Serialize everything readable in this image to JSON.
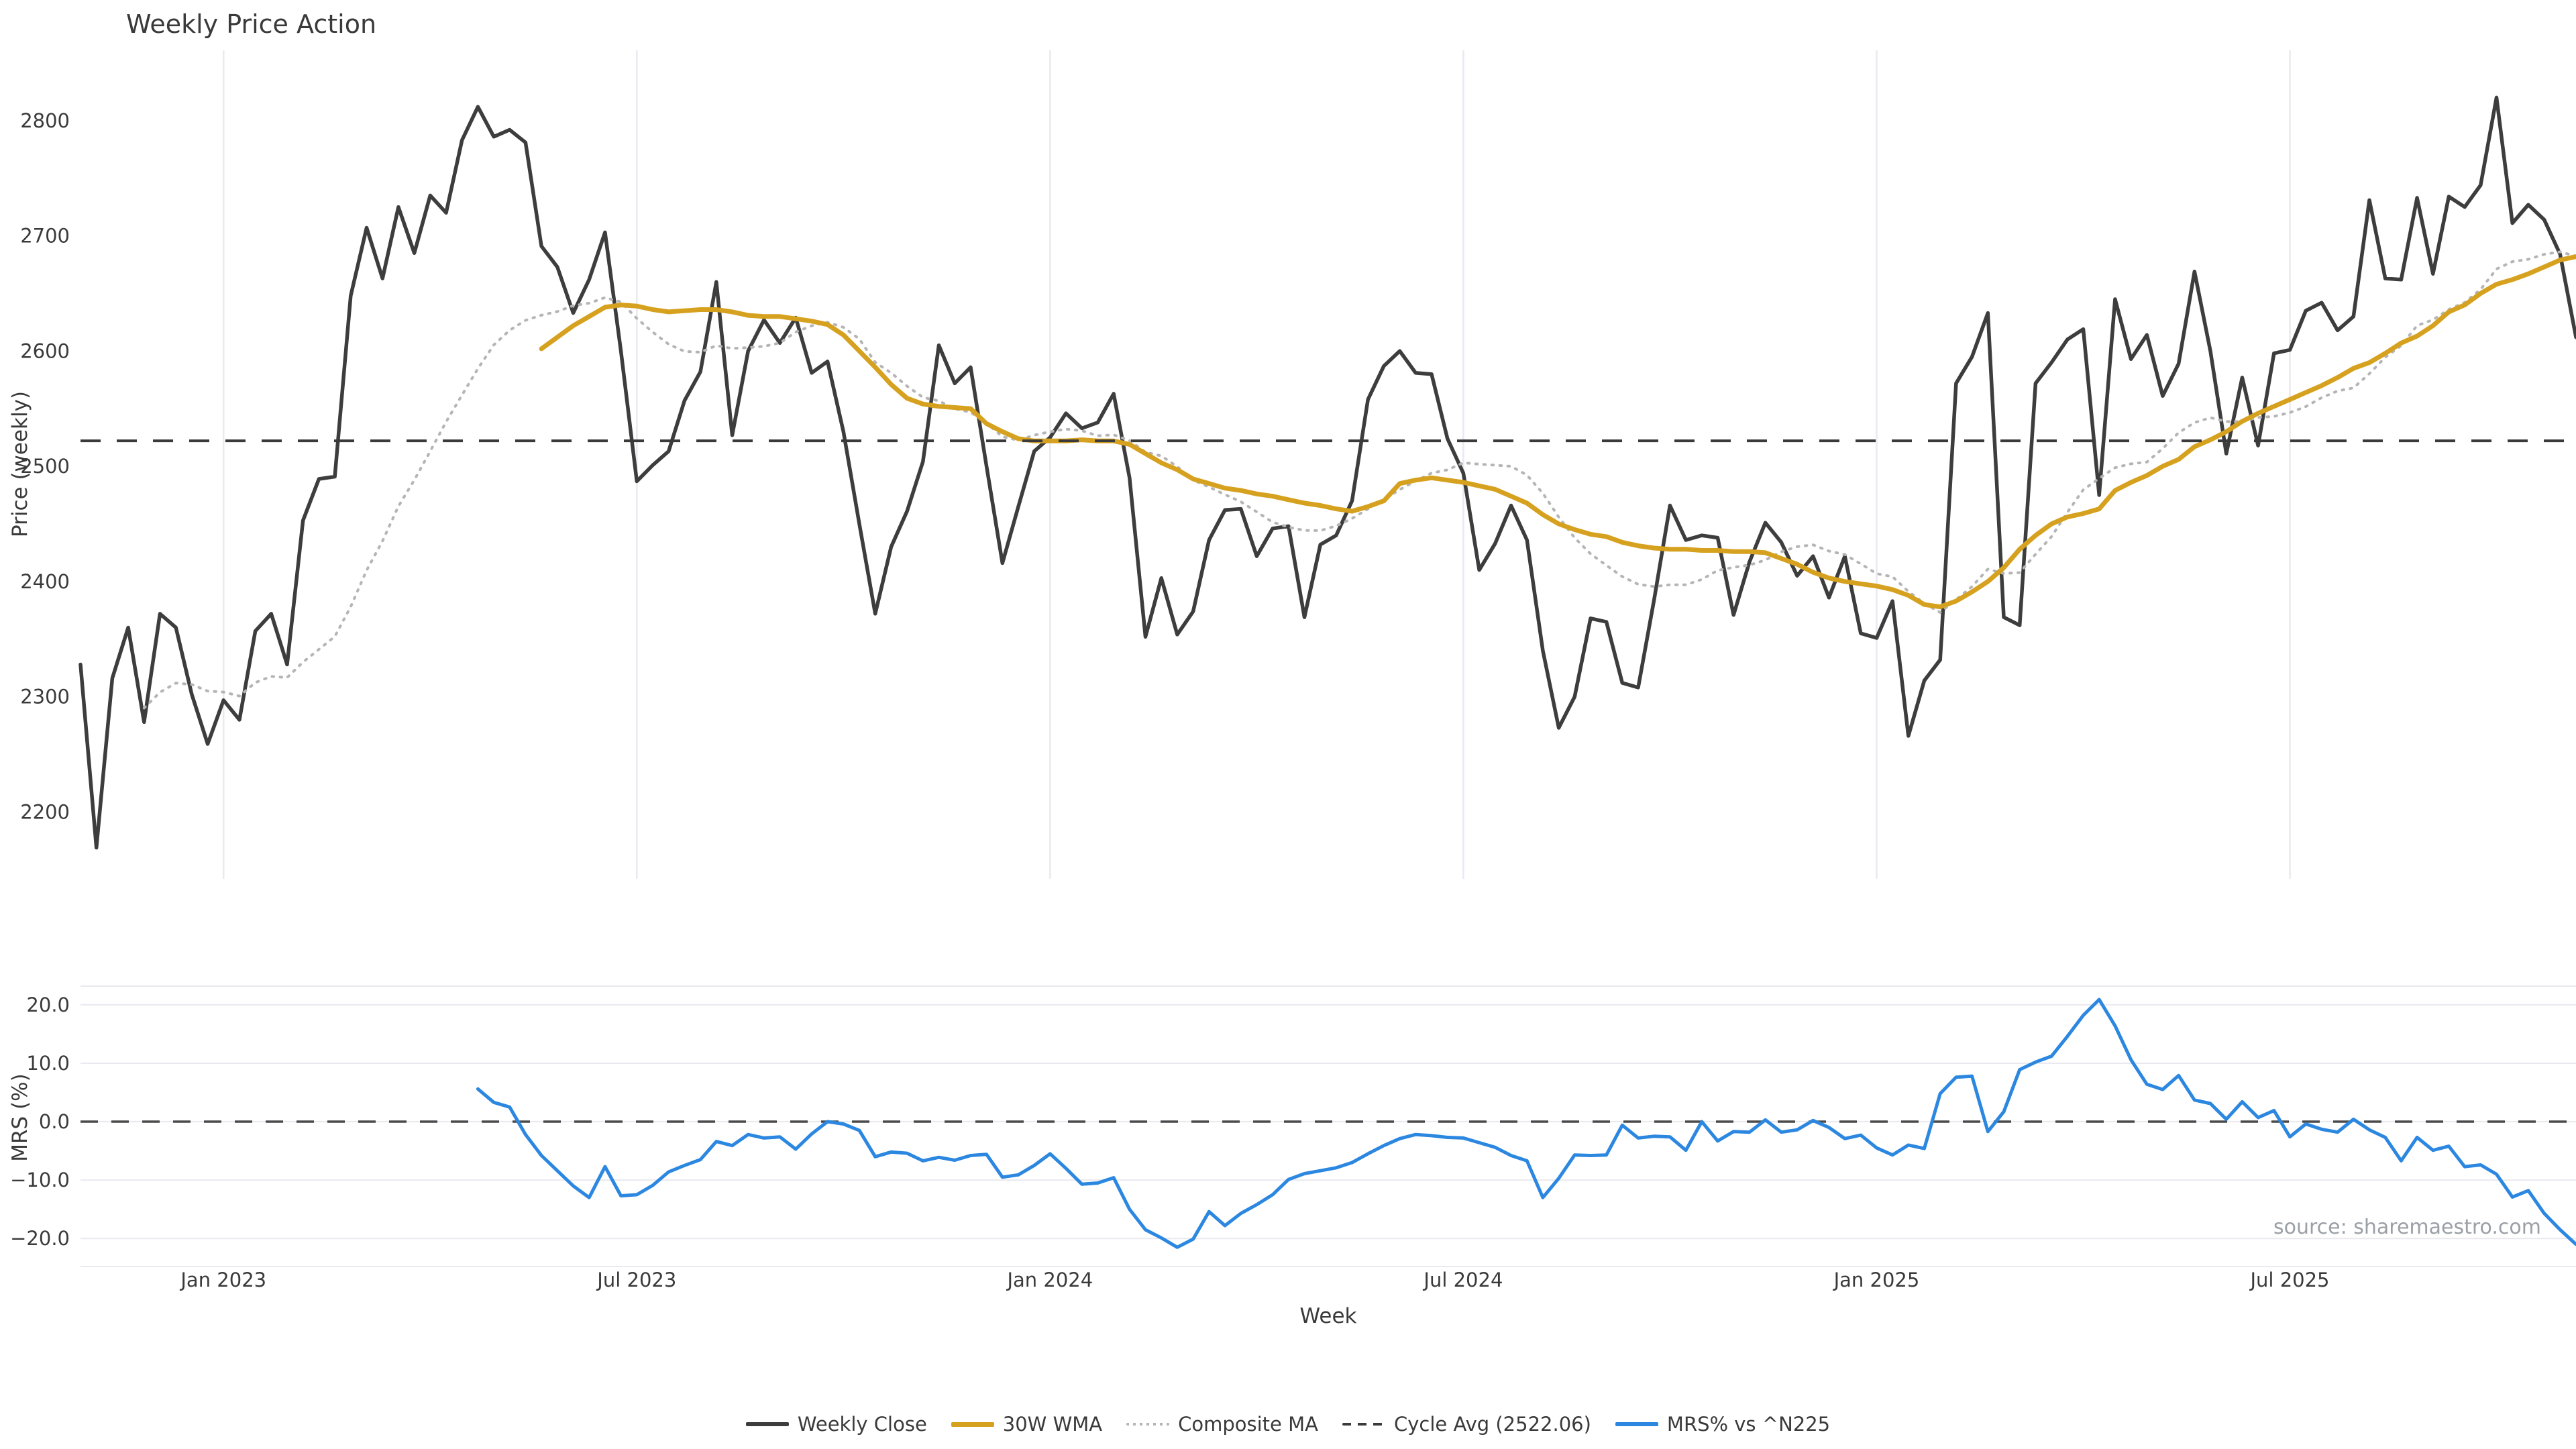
{
  "page": {
    "title": "Weekly Price Action",
    "source_credit": "source: sharemaestro.com",
    "background": "#ffffff"
  },
  "colors": {
    "weekly_close": "#3d3d3d",
    "wma": "#d6a11e",
    "composite": "#b5b5b5",
    "cycle_avg": "#3a3a3a",
    "mrs": "#2b87e0",
    "grid": "#e9e9ef",
    "zero_line": "#4a4a4a",
    "tick_text": "#3a3a3a",
    "source_text": "#9aa0a6"
  },
  "axes": {
    "x": {
      "label": "Week",
      "tick_labels": [
        "Jan 2023",
        "Jul 2023",
        "Jan 2024",
        "Jul 2024",
        "Jan 2025",
        "Jul 2025"
      ],
      "tick_indices": [
        9,
        35,
        61,
        87,
        113,
        139
      ],
      "n_points": 158
    },
    "price_y": {
      "label": "Price (weekly)",
      "tick_labels": [
        "2200",
        "2300",
        "2400",
        "2500",
        "2600",
        "2700",
        "2800"
      ],
      "tick_values": [
        2200,
        2300,
        2400,
        2500,
        2600,
        2700,
        2800
      ],
      "range": [
        2142,
        2861
      ]
    },
    "mrs_y": {
      "label": "MRS (%)",
      "tick_labels": [
        "20.0",
        "10.0",
        "0.0",
        "−10.0",
        "−20.0"
      ],
      "tick_values": [
        20,
        10,
        0,
        -10,
        -20
      ],
      "range": [
        -24.8,
        23.2
      ]
    }
  },
  "legend": {
    "items": [
      {
        "label": "Weekly Close",
        "swatch": "solid-close"
      },
      {
        "label": "30W WMA",
        "swatch": "solid-wma"
      },
      {
        "label": "Composite MA",
        "swatch": "dotted"
      },
      {
        "label": "Cycle Avg (2522.06)",
        "swatch": "dashed"
      },
      {
        "label": "MRS% vs ^N225",
        "swatch": "solid-mrs"
      }
    ]
  },
  "chart_data": [
    {
      "type": "line",
      "panel": "price",
      "title": "Weekly Price Action",
      "xlabel": "Week",
      "ylabel": "Price (weekly)",
      "x_unit": "week_index",
      "n_points": 158,
      "x_tick_indices": [
        9,
        35,
        61,
        87,
        113,
        139
      ],
      "x_tick_labels": [
        "Jan 2023",
        "Jul 2023",
        "Jan 2024",
        "Jul 2024",
        "Jan 2025",
        "Jul 2025"
      ],
      "x_range_note": "weekly data from ~Nov 2022 to ~Oct 2025",
      "ylim": [
        2142,
        2861
      ],
      "yticks": [
        2200,
        2300,
        2400,
        2500,
        2600,
        2700,
        2800
      ],
      "grid": "vertical-only",
      "legend_position": "bottom-center",
      "cycle_avg": 2522.06,
      "series": [
        {
          "name": "Weekly Close",
          "style": "solid",
          "width": 5.5,
          "start_index": 0,
          "values": [
            2328,
            2169,
            2316,
            2360,
            2278,
            2372,
            2360,
            2302,
            2259,
            2297,
            2280,
            2357,
            2372,
            2328,
            2453,
            2489,
            2491,
            2648,
            2707,
            2663,
            2725,
            2685,
            2735,
            2720,
            2783,
            2812,
            2786,
            2792,
            2781,
            2691,
            2673,
            2633,
            2662,
            2703,
            2600,
            2487,
            2501,
            2513,
            2557,
            2582,
            2660,
            2527,
            2600,
            2627,
            2607,
            2629,
            2581,
            2591,
            2530,
            2450,
            2372,
            2430,
            2461,
            2504,
            2605,
            2572,
            2586,
            2500,
            2416,
            2465,
            2513,
            2525,
            2546,
            2533,
            2538,
            2563,
            2490,
            2352,
            2403,
            2354,
            2374,
            2436,
            2462,
            2463,
            2422,
            2446,
            2448,
            2369,
            2432,
            2440,
            2470,
            2558,
            2587,
            2600,
            2581,
            2580,
            2524,
            2494,
            2410,
            2433,
            2466,
            2436,
            2340,
            2273,
            2300,
            2368,
            2365,
            2312,
            2308,
            2384,
            2466,
            2436,
            2440,
            2438,
            2371,
            2417,
            2451,
            2434,
            2405,
            2422,
            2386,
            2422,
            2355,
            2351,
            2383,
            2266,
            2314,
            2332,
            2572,
            2595,
            2633,
            2369,
            2362,
            2572,
            2590,
            2610,
            2619,
            2475,
            2645,
            2593,
            2614,
            2561,
            2589,
            2669,
            2600,
            2511,
            2577,
            2518,
            2598,
            2601,
            2635,
            2642,
            2618,
            2630,
            2731,
            2663,
            2662,
            2733,
            2667,
            2734,
            2725,
            2744,
            2820,
            2711,
            2727,
            2714,
            2684,
            2612
          ]
        },
        {
          "name": "30W WMA",
          "style": "solid",
          "width": 7,
          "start_index": 29,
          "values": [
            2602,
            2612,
            2622,
            2630,
            2638,
            2640,
            2639,
            2636,
            2634,
            2635,
            2636,
            2636,
            2634,
            2631,
            2630,
            2630,
            2628,
            2626,
            2623,
            2614,
            2600,
            2586,
            2571,
            2559,
            2554,
            2552,
            2551,
            2550,
            2537,
            2530,
            2524,
            2522,
            2522,
            2522,
            2523,
            2522,
            2522,
            2519,
            2511,
            2503,
            2497,
            2489,
            2485,
            2481,
            2479,
            2476,
            2474,
            2471,
            2468,
            2466,
            2463,
            2461,
            2465,
            2470,
            2485,
            2488,
            2490,
            2488,
            2486,
            2483,
            2480,
            2474,
            2468,
            2458,
            2450,
            2445,
            2441,
            2439,
            2434,
            2431,
            2429,
            2428,
            2428,
            2427,
            2427,
            2426,
            2426,
            2425,
            2420,
            2415,
            2408,
            2403,
            2400,
            2398,
            2396,
            2393,
            2388,
            2380,
            2378,
            2383,
            2391,
            2400,
            2412,
            2428,
            2440,
            2450,
            2456,
            2459,
            2463,
            2479,
            2486,
            2492,
            2500,
            2506,
            2517,
            2523,
            2530,
            2539,
            2546,
            2552,
            2558,
            2564,
            2570,
            2577,
            2585,
            2590,
            2598,
            2607,
            2613,
            2622,
            2634,
            2640,
            2650,
            2658,
            2662,
            2667,
            2673,
            2679,
            2682
          ]
        },
        {
          "name": "Composite MA",
          "style": "dotted",
          "width": 4,
          "start_index": 4,
          "derived_from": "Weekly Close",
          "formula": "mean(SMA10, SMA30) with clipped windows"
        },
        {
          "name": "Cycle Avg (2522.06)",
          "style": "dashed",
          "width": 4,
          "constant": 2522.06
        }
      ]
    },
    {
      "type": "line",
      "panel": "mrs",
      "ylabel": "MRS (%)",
      "x_unit": "week_index",
      "n_points": 158,
      "ylim": [
        -24.8,
        23.2
      ],
      "yticks": [
        20,
        10,
        0,
        -10,
        -20
      ],
      "grid": "horizontal-only",
      "zero_line_dashed": true,
      "series": [
        {
          "name": "MRS% vs ^N225",
          "style": "solid",
          "width": 5,
          "start_index": 25,
          "values": [
            5.6,
            3.3,
            2.5,
            -2.2,
            -5.8,
            -8.4,
            -11.0,
            -13.0,
            -7.7,
            -12.7,
            -12.5,
            -10.9,
            -8.6,
            -7.5,
            -6.5,
            -3.4,
            -4.1,
            -2.2,
            -2.8,
            -2.6,
            -4.7,
            -2.1,
            0.0,
            -0.4,
            -1.5,
            -6.0,
            -5.2,
            -5.4,
            -6.7,
            -6.1,
            -6.6,
            -5.8,
            -5.6,
            -9.5,
            -9.1,
            -7.5,
            -5.5,
            -8.0,
            -10.7,
            -10.5,
            -9.6,
            -15.0,
            -18.5,
            -19.9,
            -21.5,
            -20.1,
            -15.4,
            -17.8,
            -15.7,
            -14.2,
            -12.5,
            -9.9,
            -8.9,
            -8.4,
            -7.9,
            -7.0,
            -5.5,
            -4.1,
            -2.9,
            -2.2,
            -2.4,
            -2.7,
            -2.8,
            -3.6,
            -4.4,
            -5.8,
            -6.7,
            -13.0,
            -9.7,
            -5.7,
            -5.8,
            -5.7,
            -0.6,
            -2.8,
            -2.5,
            -2.6,
            -4.9,
            0.0,
            -3.3,
            -1.7,
            -1.8,
            0.3,
            -1.8,
            -1.4,
            0.2,
            -1.0,
            -2.9,
            -2.3,
            -4.5,
            -5.7,
            -4.0,
            -4.6,
            4.8,
            7.6,
            7.8,
            -1.7,
            1.7,
            8.9,
            10.2,
            11.2,
            14.6,
            18.2,
            20.9,
            16.4,
            10.6,
            6.4,
            5.5,
            7.9,
            3.7,
            3.1,
            0.4,
            3.4,
            0.7,
            1.9,
            -2.6,
            -0.4,
            -1.3,
            -1.8,
            0.4,
            -1.4,
            -2.7,
            -6.7,
            -2.7,
            -4.9,
            -4.2,
            -7.7,
            -7.4,
            -9.0,
            -12.9,
            -11.8,
            -15.7,
            -18.5,
            -21.0
          ]
        }
      ]
    }
  ]
}
